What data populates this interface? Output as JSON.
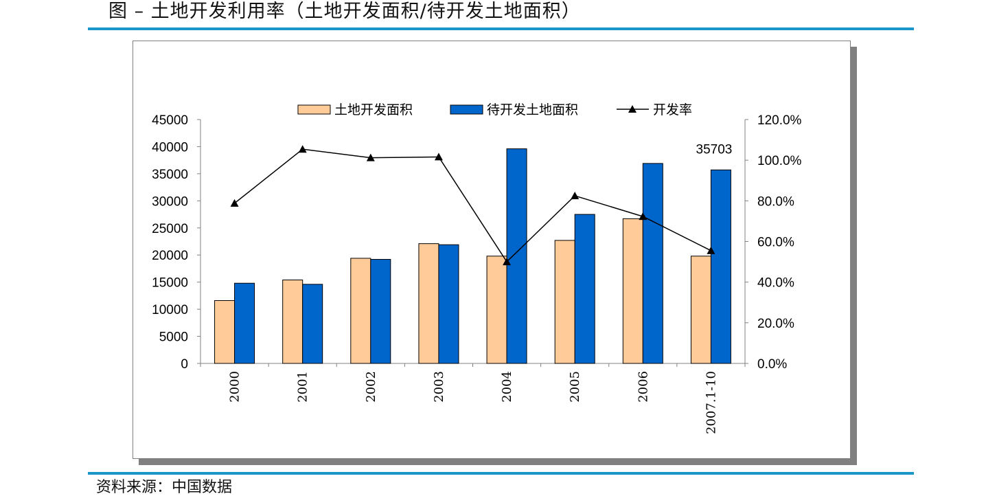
{
  "figure": {
    "title": "图 – 土地开发利用率（土地开发面积/待开发土地面积）",
    "source": "资料来源：中国数据"
  },
  "colors": {
    "rule": "#1a97c8",
    "developed": "#ffcc99",
    "pending": "#0066cc",
    "rate_line": "#000000",
    "frame_shadow": "#808080"
  },
  "chart_data": {
    "type": "bar",
    "categories": [
      "2000",
      "2001",
      "2002",
      "2003",
      "2004",
      "2005",
      "2006",
      "2007.1-10"
    ],
    "series": [
      {
        "name": "土地开发面积",
        "type": "bar",
        "axis": "left",
        "values": [
          11600,
          15400,
          19400,
          22100,
          19800,
          22700,
          26700,
          19800
        ]
      },
      {
        "name": "待开发土地面积",
        "type": "bar",
        "axis": "left",
        "values": [
          14800,
          14600,
          19200,
          21900,
          39600,
          27500,
          36900,
          35703
        ]
      },
      {
        "name": "开发率",
        "type": "line",
        "axis": "right",
        "marker": "triangle",
        "values": [
          0.788,
          1.054,
          1.012,
          1.016,
          0.5,
          0.825,
          0.723,
          0.555
        ]
      }
    ],
    "y_left": {
      "ylim": [
        0,
        45000
      ],
      "ticks": [
        "0",
        "5000",
        "10000",
        "15000",
        "20000",
        "25000",
        "30000",
        "35000",
        "40000",
        "45000"
      ]
    },
    "y_right": {
      "ylim": [
        0,
        1.2
      ],
      "ticks": [
        "0.0%",
        "20.0%",
        "40.0%",
        "60.0%",
        "80.0%",
        "100.0%",
        "120.0%"
      ]
    },
    "annotations": [
      {
        "category": "2007.1-10",
        "series": "待开发土地面积",
        "text": "35703"
      }
    ],
    "legend": "top-center",
    "grid": false
  }
}
